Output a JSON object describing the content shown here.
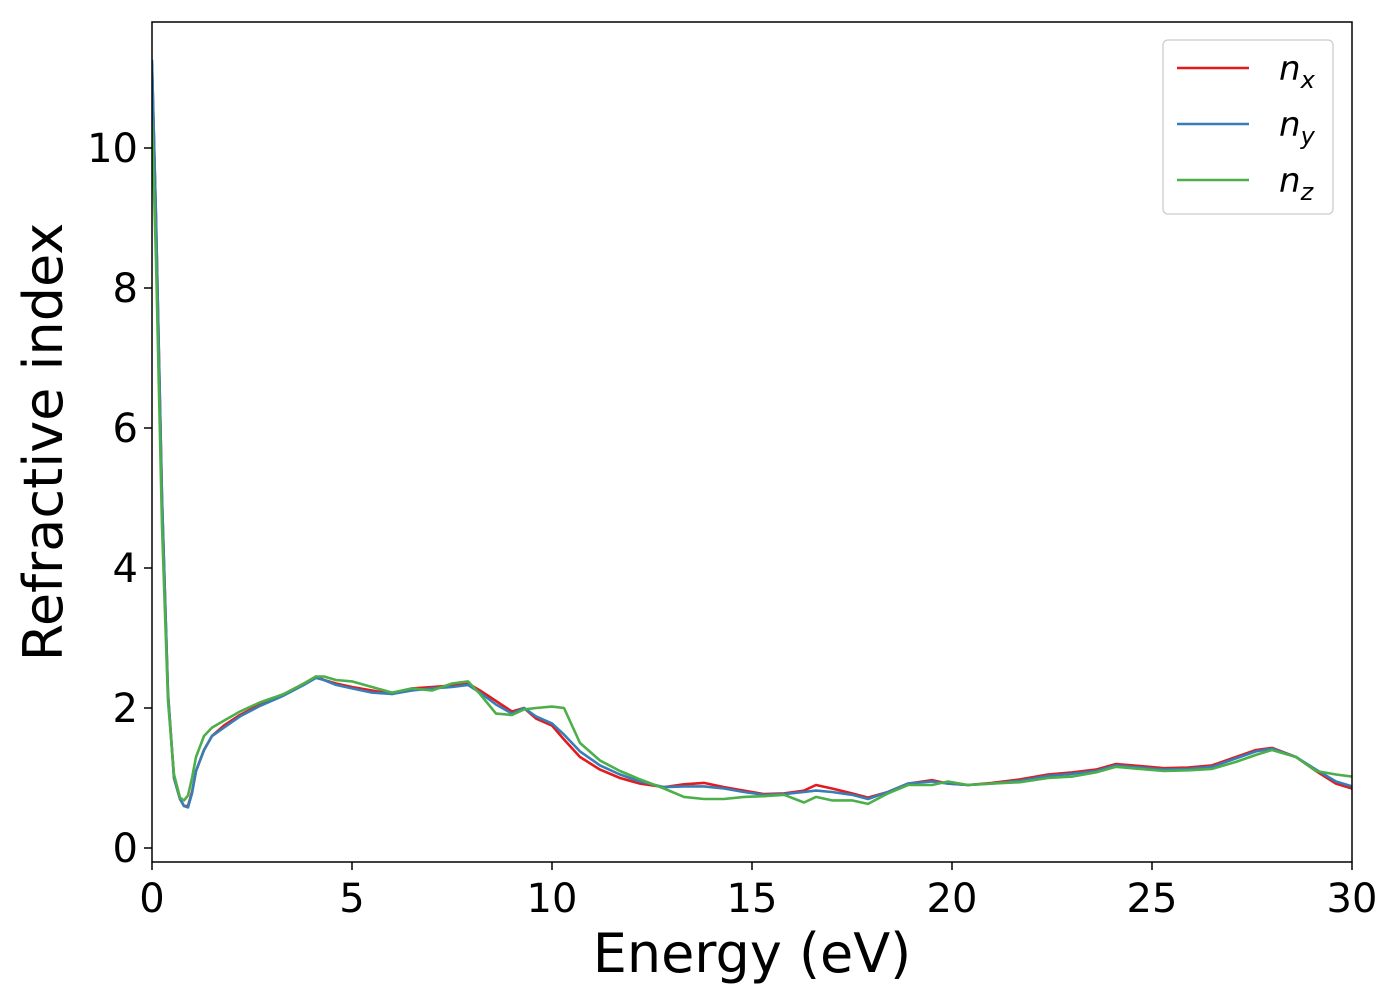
{
  "chart_data": {
    "type": "line",
    "xlabel": "Energy (eV)",
    "ylabel": "Refractive index",
    "xlim": [
      0,
      30
    ],
    "ylim": [
      -0.2,
      11.8
    ],
    "xticks": [
      "0",
      "5",
      "10",
      "15",
      "20",
      "25",
      "30"
    ],
    "yticks": [
      "0",
      "2",
      "4",
      "6",
      "8",
      "10"
    ],
    "grid": false,
    "legend": "top-right",
    "series": [
      {
        "name": "n",
        "subscript": "x",
        "color": "#e41a1c",
        "x": [
          0,
          0.1,
          0.25,
          0.4,
          0.55,
          0.7,
          0.8,
          0.9,
          1.0,
          1.1,
          1.3,
          1.5,
          1.8,
          2.2,
          2.7,
          3.3,
          3.8,
          4.1,
          4.3,
          4.6,
          5.0,
          5.5,
          6.0,
          6.5,
          7.0,
          7.5,
          7.9,
          8.2,
          8.6,
          9.0,
          9.3,
          9.6,
          10.0,
          10.3,
          10.7,
          11.2,
          11.7,
          12.2,
          12.8,
          13.3,
          13.8,
          14.3,
          14.8,
          15.3,
          15.8,
          16.3,
          16.6,
          17.0,
          17.5,
          17.9,
          18.4,
          18.9,
          19.5,
          19.9,
          20.4,
          21.0,
          21.7,
          22.4,
          23.0,
          23.6,
          24.1,
          24.7,
          25.3,
          25.9,
          26.5,
          27.1,
          27.6,
          28.0,
          28.6,
          29.1,
          29.6,
          30.0
        ],
        "values": [
          11.2,
          9.0,
          5.0,
          2.2,
          1.0,
          0.7,
          0.6,
          0.6,
          0.8,
          1.1,
          1.4,
          1.6,
          1.75,
          1.9,
          2.05,
          2.2,
          2.35,
          2.45,
          2.4,
          2.35,
          2.3,
          2.25,
          2.2,
          2.28,
          2.3,
          2.32,
          2.35,
          2.25,
          2.1,
          1.95,
          2.0,
          1.85,
          1.75,
          1.55,
          1.3,
          1.12,
          1.0,
          0.92,
          0.87,
          0.91,
          0.93,
          0.87,
          0.82,
          0.77,
          0.78,
          0.82,
          0.9,
          0.85,
          0.78,
          0.72,
          0.8,
          0.92,
          0.97,
          0.92,
          0.9,
          0.93,
          0.98,
          1.05,
          1.08,
          1.12,
          1.2,
          1.17,
          1.14,
          1.15,
          1.18,
          1.3,
          1.4,
          1.43,
          1.3,
          1.1,
          0.92,
          0.85
        ]
      },
      {
        "name": "n",
        "subscript": "y",
        "color": "#377eb8",
        "x": [
          0,
          0.1,
          0.25,
          0.4,
          0.55,
          0.7,
          0.8,
          0.9,
          1.0,
          1.1,
          1.3,
          1.5,
          1.8,
          2.2,
          2.7,
          3.3,
          3.8,
          4.1,
          4.3,
          4.6,
          5.0,
          5.5,
          6.0,
          6.5,
          7.0,
          7.5,
          7.9,
          8.2,
          8.6,
          9.0,
          9.3,
          9.6,
          10.0,
          10.3,
          10.7,
          11.2,
          11.7,
          12.2,
          12.8,
          13.3,
          13.8,
          14.3,
          14.8,
          15.3,
          15.8,
          16.3,
          16.6,
          17.0,
          17.5,
          17.9,
          18.4,
          18.9,
          19.5,
          19.9,
          20.4,
          21.0,
          21.7,
          22.4,
          23.0,
          23.6,
          24.1,
          24.7,
          25.3,
          25.9,
          26.5,
          27.1,
          27.6,
          28.0,
          28.6,
          29.1,
          29.6,
          30.0
        ],
        "values": [
          11.25,
          9.0,
          5.0,
          2.2,
          1.0,
          0.7,
          0.6,
          0.58,
          0.78,
          1.1,
          1.4,
          1.6,
          1.72,
          1.88,
          2.03,
          2.18,
          2.33,
          2.43,
          2.4,
          2.33,
          2.28,
          2.22,
          2.2,
          2.25,
          2.28,
          2.3,
          2.33,
          2.22,
          2.05,
          1.92,
          2.0,
          1.88,
          1.78,
          1.62,
          1.38,
          1.18,
          1.05,
          0.95,
          0.87,
          0.88,
          0.88,
          0.85,
          0.8,
          0.76,
          0.77,
          0.8,
          0.82,
          0.8,
          0.76,
          0.7,
          0.8,
          0.92,
          0.95,
          0.92,
          0.9,
          0.92,
          0.96,
          1.03,
          1.06,
          1.1,
          1.18,
          1.15,
          1.12,
          1.13,
          1.16,
          1.28,
          1.38,
          1.42,
          1.3,
          1.12,
          0.95,
          0.88
        ]
      },
      {
        "name": "n",
        "subscript": "z",
        "color": "#4daf4a",
        "x": [
          0,
          0.1,
          0.25,
          0.4,
          0.55,
          0.7,
          0.8,
          0.9,
          1.0,
          1.1,
          1.3,
          1.5,
          1.8,
          2.2,
          2.7,
          3.3,
          3.8,
          4.1,
          4.3,
          4.6,
          5.0,
          5.5,
          6.0,
          6.5,
          7.0,
          7.5,
          7.9,
          8.2,
          8.6,
          9.0,
          9.3,
          9.6,
          10.0,
          10.3,
          10.7,
          11.2,
          11.7,
          12.2,
          12.8,
          13.3,
          13.8,
          14.3,
          14.8,
          15.3,
          15.8,
          16.3,
          16.6,
          17.0,
          17.5,
          17.9,
          18.4,
          18.9,
          19.5,
          19.9,
          20.4,
          21.0,
          21.7,
          22.4,
          23.0,
          23.6,
          24.1,
          24.7,
          25.3,
          25.9,
          26.5,
          27.1,
          27.6,
          28.0,
          28.6,
          29.1,
          29.6,
          30.0
        ],
        "values": [
          10.4,
          8.4,
          4.6,
          2.1,
          1.05,
          0.72,
          0.68,
          0.75,
          1.0,
          1.3,
          1.6,
          1.72,
          1.82,
          1.95,
          2.08,
          2.2,
          2.35,
          2.45,
          2.45,
          2.4,
          2.38,
          2.3,
          2.22,
          2.28,
          2.25,
          2.35,
          2.38,
          2.2,
          1.92,
          1.9,
          1.98,
          2.0,
          2.02,
          2.0,
          1.5,
          1.25,
          1.1,
          0.98,
          0.85,
          0.73,
          0.7,
          0.7,
          0.73,
          0.74,
          0.76,
          0.65,
          0.73,
          0.68,
          0.68,
          0.63,
          0.78,
          0.9,
          0.9,
          0.95,
          0.9,
          0.92,
          0.94,
          1.0,
          1.02,
          1.08,
          1.16,
          1.13,
          1.1,
          1.11,
          1.13,
          1.23,
          1.33,
          1.4,
          1.3,
          1.1,
          1.05,
          1.02
        ]
      }
    ]
  }
}
